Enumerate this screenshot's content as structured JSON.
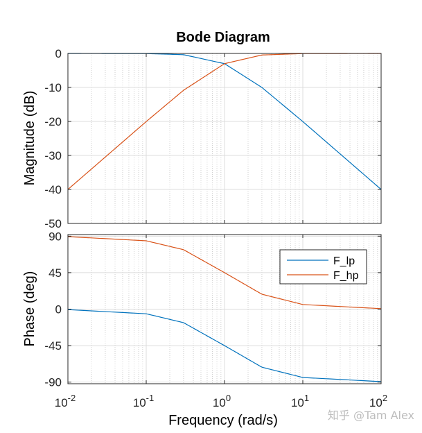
{
  "chart_data": {
    "type": "line",
    "title": "Bode Diagram",
    "xlabel": "Frequency  (rad/s)",
    "x_scale": "log",
    "xlim": [
      0.01,
      100
    ],
    "x_ticks": [
      {
        "value": 0.01,
        "base": "10",
        "exp": "-2"
      },
      {
        "value": 0.1,
        "base": "10",
        "exp": "-1"
      },
      {
        "value": 1,
        "base": "10",
        "exp": "0"
      },
      {
        "value": 10,
        "base": "10",
        "exp": "1"
      },
      {
        "value": 100,
        "base": "10",
        "exp": "2"
      }
    ],
    "grid": true,
    "legend": {
      "placement": "right, inside phase plot",
      "entries": [
        "F_lp",
        "F_hp"
      ]
    },
    "series_colors": {
      "F_lp": "#0072BD",
      "F_hp": "#D95319"
    },
    "panels": [
      {
        "name": "magnitude",
        "ylabel": "Magnitude (dB)",
        "ylim": [
          -50,
          0
        ],
        "y_ticks": [
          "0",
          "-10",
          "-20",
          "-30",
          "-40",
          "-50"
        ],
        "y_tick_values": [
          0,
          -10,
          -20,
          -30,
          -40,
          -50
        ],
        "series": [
          {
            "name": "F_lp",
            "x": [
              0.01,
              0.1,
              0.3,
              1,
              3,
              10,
              100
            ],
            "values": [
              0,
              -0.04,
              -0.37,
              -3.01,
              -10,
              -20.04,
              -40
            ]
          },
          {
            "name": "F_hp",
            "x": [
              0.01,
              0.1,
              0.3,
              1,
              3,
              10,
              100
            ],
            "values": [
              -40,
              -20.04,
              -10.83,
              -3.01,
              -0.46,
              -0.04,
              0
            ]
          }
        ]
      },
      {
        "name": "phase",
        "ylabel": "Phase (deg)",
        "ylim": [
          -92,
          92
        ],
        "y_ticks": [
          "90",
          "45",
          "0",
          "-45",
          "-90"
        ],
        "y_tick_values": [
          90,
          45,
          0,
          -45,
          -90
        ],
        "series": [
          {
            "name": "F_lp",
            "x": [
              0.01,
              0.1,
              0.3,
              1,
              3,
              10,
              100
            ],
            "values": [
              -0.6,
              -5.7,
              -16.7,
              -45,
              -71.6,
              -84.3,
              -89.4
            ]
          },
          {
            "name": "F_hp",
            "x": [
              0.01,
              0.1,
              0.3,
              1,
              3,
              10,
              100
            ],
            "values": [
              89.4,
              84.3,
              73.3,
              45,
              18.4,
              5.7,
              0.6
            ]
          }
        ]
      }
    ]
  },
  "watermark": "知乎 @Tam Alex"
}
